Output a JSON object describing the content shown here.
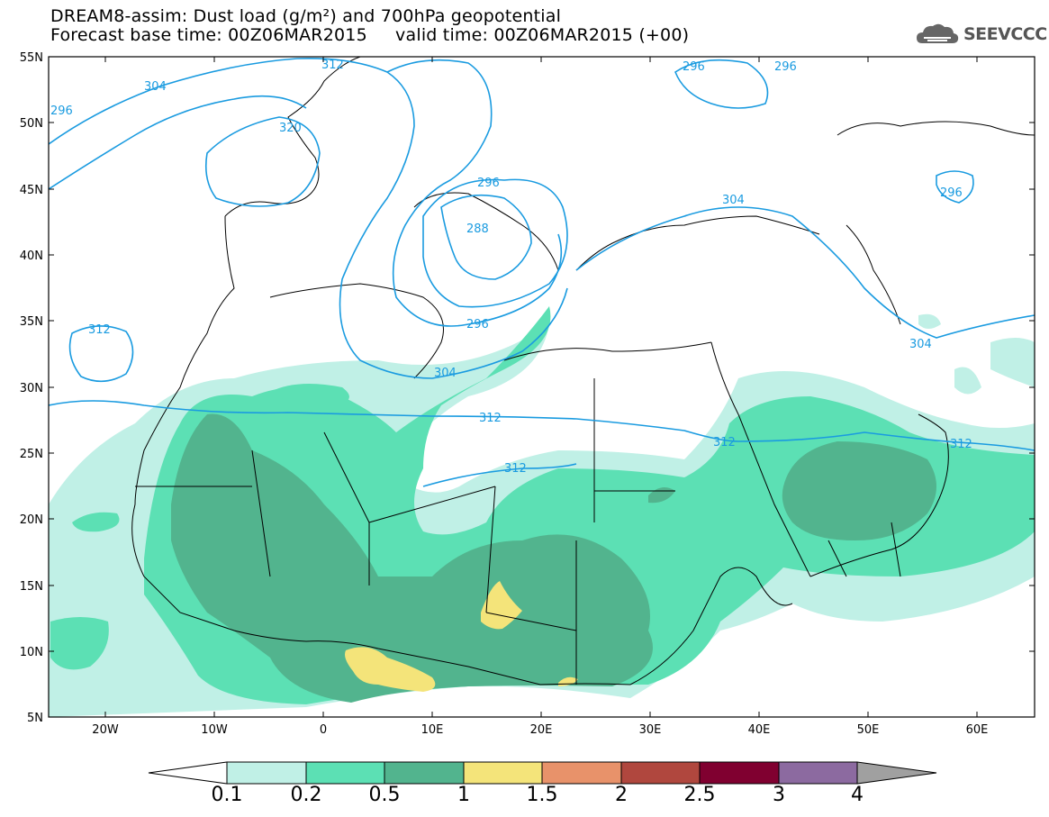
{
  "header": {
    "title_line1": "DREAM8-assim: Dust load (g/m²) and 700hPa geopotential",
    "title_line2": "Forecast base time: 00Z06MAR2015     valid time: 00Z06MAR2015 (+00)",
    "logo_text": "SEEVCCC",
    "logo_icon": "cloud-icon"
  },
  "map": {
    "lat_labels": [
      "55N",
      "50N",
      "45N",
      "40N",
      "35N",
      "30N",
      "25N",
      "20N",
      "15N",
      "10N",
      "5N"
    ],
    "lon_labels": [
      "20W",
      "10W",
      "0",
      "10E",
      "20E",
      "30E",
      "40E",
      "50E",
      "60E"
    ],
    "contour_labels": [
      "312",
      "304",
      "296",
      "320",
      "296",
      "288",
      "296",
      "296",
      "296",
      "304",
      "312",
      "312",
      "304",
      "312",
      "304",
      "312",
      "312",
      "296"
    ],
    "colors": {
      "contour": "#1a9be0",
      "land_line": "#000000",
      "dust_0_1": "#c0f0e6",
      "dust_0_2": "#5ce0b4",
      "dust_0_5": "#52b48e",
      "dust_1": "#f4e47a",
      "dust_1_5": "#e8926a",
      "dust_2": "#b0473e",
      "dust_2_5": "#800030",
      "dust_3": "#8c6aa0",
      "dust_4": "#a0a0a0"
    }
  },
  "colorbar": {
    "labels": [
      "0.1",
      "0.2",
      "0.5",
      "1",
      "1.5",
      "2",
      "2.5",
      "3",
      "4"
    ],
    "colors": [
      "#c0f0e6",
      "#5ce0b4",
      "#52b48e",
      "#f4e47a",
      "#e8926a",
      "#b0473e",
      "#800030",
      "#8c6aa0"
    ]
  }
}
